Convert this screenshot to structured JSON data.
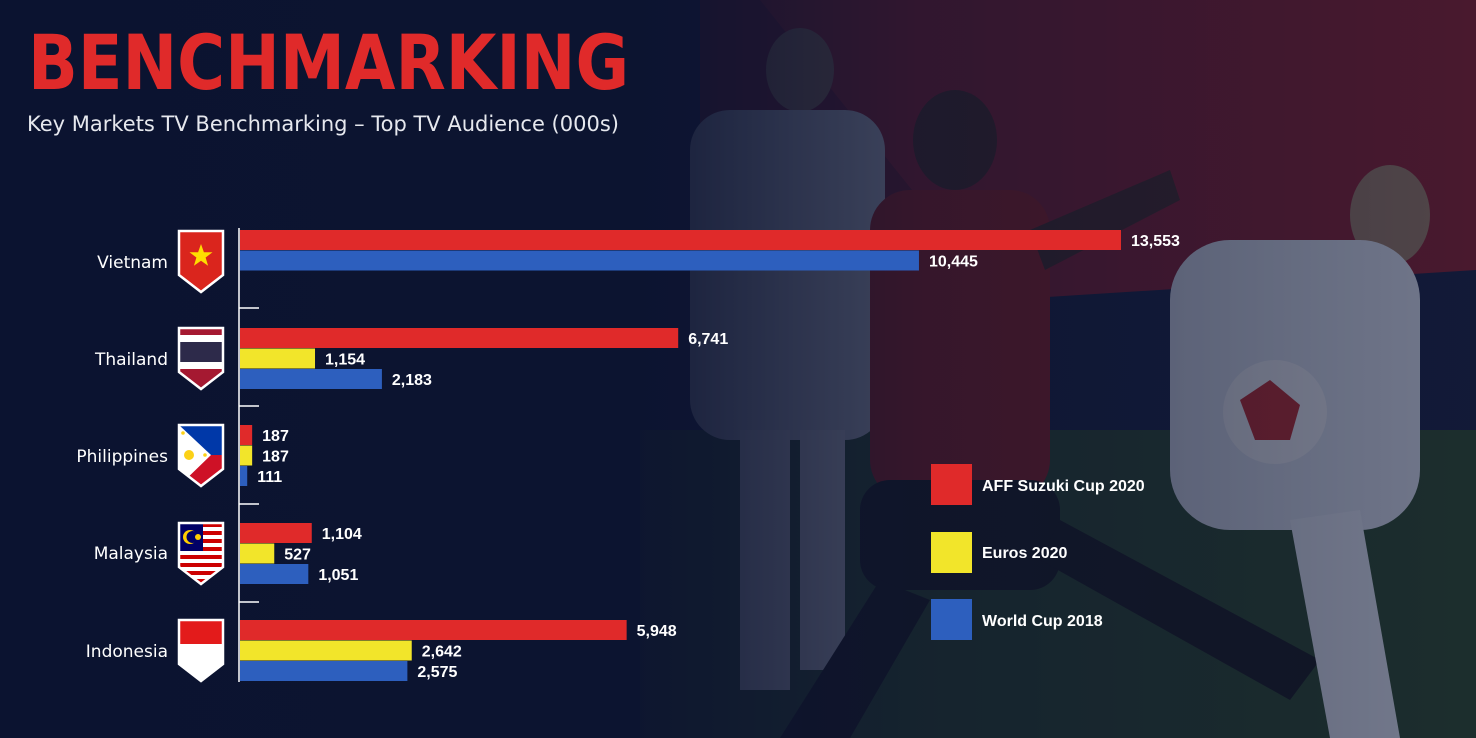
{
  "header": {
    "title": "BENCHMARKING",
    "subtitle": "Key Markets TV Benchmarking – Top TV Audience (000s)"
  },
  "colors": {
    "aff": "#e02a2a",
    "euros": "#f2e52a",
    "worldcup": "#2d5fbe",
    "background": "#0c1330"
  },
  "chart_data": {
    "type": "bar",
    "orientation": "horizontal",
    "title": "Key Markets TV Benchmarking – Top TV Audience (000s)",
    "xlabel": "",
    "ylabel": "",
    "xlim": [
      0,
      13553
    ],
    "grid": false,
    "legend_position": "right",
    "categories": [
      "Vietnam",
      "Thailand",
      "Philippines",
      "Malaysia",
      "Indonesia"
    ],
    "category_icons": [
      "vietnam-flag-icon",
      "thailand-flag-icon",
      "philippines-flag-icon",
      "malaysia-flag-icon",
      "indonesia-flag-icon"
    ],
    "series": [
      {
        "name": "AFF Suzuki Cup 2020",
        "color": "#e02a2a",
        "values": [
          13553,
          6741,
          187,
          1104,
          5948
        ],
        "labels": [
          "13,553",
          "6,741",
          "187",
          "1,104",
          "5,948"
        ]
      },
      {
        "name": "Euros 2020",
        "color": "#f2e52a",
        "values": [
          null,
          1154,
          187,
          527,
          2642
        ],
        "labels": [
          null,
          "1,154",
          "187",
          "527",
          "2,642"
        ]
      },
      {
        "name": "World Cup 2018",
        "color": "#2d5fbe",
        "values": [
          10445,
          2183,
          111,
          1051,
          2575
        ],
        "labels": [
          "10,445",
          "2,183",
          "111",
          "1,051",
          "2,575"
        ]
      }
    ]
  }
}
